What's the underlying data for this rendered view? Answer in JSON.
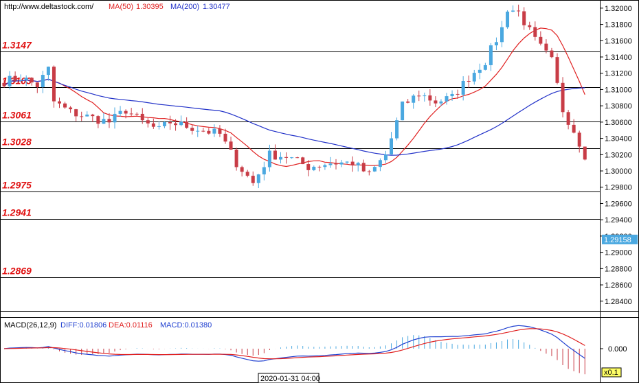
{
  "header": {
    "site": "http://www.deltastock.com/",
    "ma50_label": "MA(50)",
    "ma50_value": "1.30395",
    "ma200_label": "MA(200)",
    "ma200_value": "1.30477"
  },
  "colors": {
    "up_candle": "#4aa8e0",
    "down_candle": "#c83c46",
    "ma50": "#e02020",
    "ma200": "#2030c8",
    "level_text": "#e01010",
    "macd_diff": "#2040d0",
    "macd_dea": "#e02020"
  },
  "levels": [
    {
      "label": "1.3147",
      "value": 1.3147
    },
    {
      "label": "1.3103",
      "value": 1.3103
    },
    {
      "label": "1.3061",
      "value": 1.3061
    },
    {
      "label": "1.3028",
      "value": 1.3028
    },
    {
      "label": "1.2975",
      "value": 1.2975
    },
    {
      "label": "1.2941",
      "value": 1.2941
    },
    {
      "label": "1.2869",
      "value": 1.2869
    }
  ],
  "price_axis": {
    "ticks": [
      "1.32000",
      "1.31800",
      "1.31600",
      "1.31400",
      "1.31200",
      "1.31000",
      "1.30800",
      "1.30600",
      "1.30400",
      "1.30200",
      "1.30000",
      "1.29800",
      "1.29600",
      "1.29400",
      "1.29200",
      "1.29000",
      "1.28800",
      "1.28600",
      "1.28400"
    ],
    "min": 1.2828,
    "max": 1.321,
    "current_label": "1.29158",
    "current_value": 1.29158
  },
  "macd": {
    "label": "MACD(26,12,9)",
    "diff_label": "DIFF:0.01806",
    "dea_label": "DEA:0.01116",
    "macd_label": "MACD:0.01380",
    "zero_label": "0.000",
    "scale_label": "x0.1"
  },
  "time_axis": {
    "cursor_label": "2020-01-31 04:00"
  },
  "chart_data": {
    "type": "candlestick",
    "candle_count": 106,
    "price_anchors": [
      [
        0,
        1.311
      ],
      [
        3,
        1.3115
      ],
      [
        6,
        1.3105
      ],
      [
        8,
        1.3125
      ],
      [
        9,
        1.3085
      ],
      [
        12,
        1.3072
      ],
      [
        16,
        1.3065
      ],
      [
        19,
        1.306
      ],
      [
        22,
        1.3075
      ],
      [
        25,
        1.306
      ],
      [
        28,
        1.305
      ],
      [
        30,
        1.306
      ],
      [
        33,
        1.3055
      ],
      [
        36,
        1.305
      ],
      [
        39,
        1.3045
      ],
      [
        42,
        1.301
      ],
      [
        45,
        1.2985
      ],
      [
        48,
        1.302
      ],
      [
        51,
        1.3018
      ],
      [
        55,
        1.3005
      ],
      [
        59,
        1.301
      ],
      [
        63,
        1.301
      ],
      [
        66,
        1.2995
      ],
      [
        69,
        1.302
      ],
      [
        72,
        1.308
      ],
      [
        75,
        1.3095
      ],
      [
        78,
        1.3085
      ],
      [
        81,
        1.309
      ],
      [
        84,
        1.3115
      ],
      [
        87,
        1.3135
      ],
      [
        90,
        1.3175
      ],
      [
        91,
        1.32
      ],
      [
        93,
        1.3195
      ],
      [
        96,
        1.316
      ],
      [
        99,
        1.3135
      ],
      [
        101,
        1.3075
      ],
      [
        103,
        1.305
      ],
      [
        105,
        1.302
      ],
      [
        108,
        1.2995
      ]
    ],
    "note": "",
    "ma50_anchors": [],
    "ma200_anchors": []
  }
}
